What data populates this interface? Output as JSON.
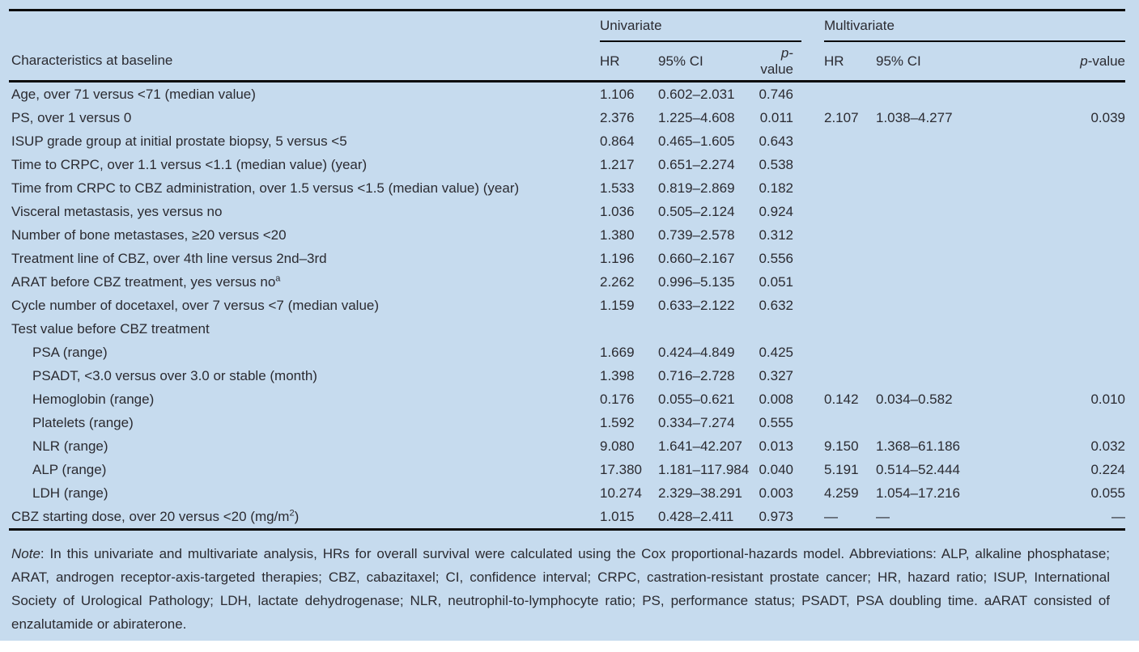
{
  "colors": {
    "panel_bg": "#c6dbee",
    "text": "#2b2b31",
    "rule": "#0b0b0b"
  },
  "table": {
    "characteristics_header": "Characteristics at baseline",
    "groups": {
      "univariate": "Univariate",
      "multivariate": "Multivariate"
    },
    "subheaders": {
      "hr": "HR",
      "ci": "95% CI",
      "p_italic": "p",
      "p_rest": "-value"
    },
    "rows": [
      {
        "label": "Age, over 71 versus <71 (median value)",
        "indent": false,
        "uni": {
          "hr": "1.106",
          "ci": "0.602–2.031",
          "p": "0.746"
        },
        "multi": {
          "hr": "",
          "ci": "",
          "p": ""
        }
      },
      {
        "label": "PS, over 1 versus 0",
        "indent": false,
        "uni": {
          "hr": "2.376",
          "ci": "1.225–4.608",
          "p": "0.011"
        },
        "multi": {
          "hr": "2.107",
          "ci": "1.038–4.277",
          "p": "0.039"
        }
      },
      {
        "label": "ISUP grade group at initial prostate biopsy, 5 versus <5",
        "indent": false,
        "uni": {
          "hr": "0.864",
          "ci": "0.465–1.605",
          "p": "0.643"
        },
        "multi": {
          "hr": "",
          "ci": "",
          "p": ""
        }
      },
      {
        "label": "Time to CRPC, over 1.1 versus <1.1 (median value) (year)",
        "indent": false,
        "uni": {
          "hr": "1.217",
          "ci": "0.651–2.274",
          "p": "0.538"
        },
        "multi": {
          "hr": "",
          "ci": "",
          "p": ""
        }
      },
      {
        "label": "Time from CRPC to CBZ administration, over 1.5 versus <1.5 (median value) (year)",
        "indent": false,
        "uni": {
          "hr": "1.533",
          "ci": "0.819–2.869",
          "p": "0.182"
        },
        "multi": {
          "hr": "",
          "ci": "",
          "p": ""
        }
      },
      {
        "label": "Visceral metastasis, yes versus no",
        "indent": false,
        "uni": {
          "hr": "1.036",
          "ci": "0.505–2.124",
          "p": "0.924"
        },
        "multi": {
          "hr": "",
          "ci": "",
          "p": ""
        }
      },
      {
        "label": "Number of bone metastases, ≥20 versus <20",
        "indent": false,
        "uni": {
          "hr": "1.380",
          "ci": "0.739–2.578",
          "p": "0.312"
        },
        "multi": {
          "hr": "",
          "ci": "",
          "p": ""
        }
      },
      {
        "label": "Treatment line of CBZ, over 4th line versus 2nd–3rd",
        "indent": false,
        "uni": {
          "hr": "1.196",
          "ci": "0.660–2.167",
          "p": "0.556"
        },
        "multi": {
          "hr": "",
          "ci": "",
          "p": ""
        }
      },
      {
        "label": "ARAT before CBZ treatment, yes versus no",
        "sup": "a",
        "indent": false,
        "uni": {
          "hr": "2.262",
          "ci": "0.996–5.135",
          "p": "0.051"
        },
        "multi": {
          "hr": "",
          "ci": "",
          "p": ""
        }
      },
      {
        "label": "Cycle number of docetaxel, over 7 versus <7 (median value)",
        "indent": false,
        "uni": {
          "hr": "1.159",
          "ci": "0.633–2.122",
          "p": "0.632"
        },
        "multi": {
          "hr": "",
          "ci": "",
          "p": ""
        }
      },
      {
        "label": "Test value before CBZ treatment",
        "indent": false,
        "uni": {
          "hr": "",
          "ci": "",
          "p": ""
        },
        "multi": {
          "hr": "",
          "ci": "",
          "p": ""
        }
      },
      {
        "label": "PSA (range)",
        "indent": true,
        "uni": {
          "hr": "1.669",
          "ci": "0.424–4.849",
          "p": "0.425"
        },
        "multi": {
          "hr": "",
          "ci": "",
          "p": ""
        }
      },
      {
        "label": "PSADT, <3.0 versus over 3.0 or stable (month)",
        "indent": true,
        "uni": {
          "hr": "1.398",
          "ci": "0.716–2.728",
          "p": "0.327"
        },
        "multi": {
          "hr": "",
          "ci": "",
          "p": ""
        }
      },
      {
        "label": "Hemoglobin (range)",
        "indent": true,
        "uni": {
          "hr": "0.176",
          "ci": "0.055–0.621",
          "p": "0.008"
        },
        "multi": {
          "hr": "0.142",
          "ci": "0.034–0.582",
          "p": "0.010"
        }
      },
      {
        "label": "Platelets (range)",
        "indent": true,
        "uni": {
          "hr": "1.592",
          "ci": "0.334–7.274",
          "p": "0.555"
        },
        "multi": {
          "hr": "",
          "ci": "",
          "p": ""
        }
      },
      {
        "label": "NLR (range)",
        "indent": true,
        "uni": {
          "hr": "9.080",
          "ci": "1.641–42.207",
          "p": "0.013"
        },
        "multi": {
          "hr": "9.150",
          "ci": "1.368–61.186",
          "p": "0.032"
        }
      },
      {
        "label": "ALP (range)",
        "indent": true,
        "uni": {
          "hr": "17.380",
          "ci": "1.181–117.984",
          "p": "0.040"
        },
        "multi": {
          "hr": "5.191",
          "ci": "0.514–52.444",
          "p": "0.224"
        }
      },
      {
        "label": "LDH (range)",
        "indent": true,
        "uni": {
          "hr": "10.274",
          "ci": "2.329–38.291",
          "p": "0.003"
        },
        "multi": {
          "hr": "4.259",
          "ci": "1.054–17.216",
          "p": "0.055"
        }
      },
      {
        "label": "CBZ starting dose, over 20 versus <20 (mg/m",
        "sup": "2",
        "after": ")",
        "indent": false,
        "uni": {
          "hr": "1.015",
          "ci": "0.428–2.411",
          "p": "0.973"
        },
        "multi": {
          "hr": "—",
          "ci": "—",
          "p": "—"
        }
      }
    ]
  },
  "note": {
    "label": "Note",
    "text": ": In this univariate and multivariate analysis, HRs for overall survival were calculated using the Cox proportional-hazards model. Abbreviations: ALP, alkaline phosphatase; ARAT, androgen receptor-axis-targeted therapies; CBZ, cabazitaxel; CI, confidence interval; CRPC, castration-resistant prostate cancer; HR, hazard ratio; ISUP, International Society of Urological Pathology; LDH, lactate dehydrogenase; NLR, neutrophil-to-lymphocyte ratio; PS, performance status; PSADT, PSA doubling time. aARAT consisted of enzalutamide or abiraterone."
  }
}
